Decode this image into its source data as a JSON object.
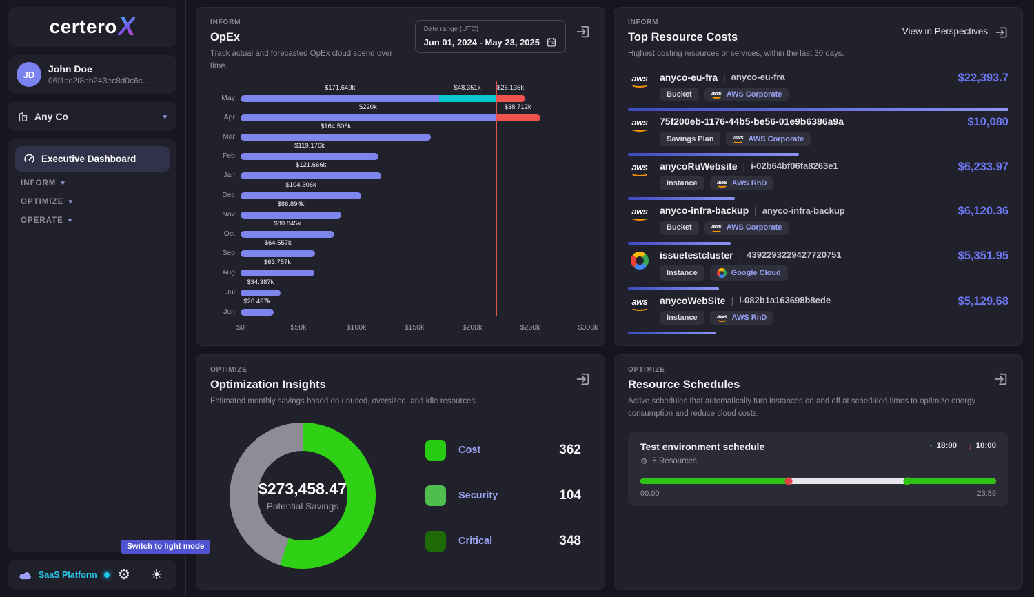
{
  "colors": {
    "accent_purple": "#7e86ee",
    "accent_cyan": "#00c9cf",
    "accent_red": "#ef5350",
    "price_purple": "#6d77f2",
    "donut_green": "#2fd115",
    "donut_gray": "#8d8d98",
    "timeline_green": "#2ec214",
    "timeline_off_dot": "#e04545",
    "timeline_on_dot": "#2ec214"
  },
  "icons": {
    "caret_down": "▾",
    "gear": "⚙",
    "sun": "☀",
    "up_arrow": "↑",
    "down_arrow": "↓",
    "pipe": "|"
  },
  "sidebar": {
    "logo": {
      "text": "certero",
      "x": "X"
    },
    "user": {
      "initials": "JD",
      "name": "John Doe",
      "id": "06f1cc2f8eb243ec8d0c6c..."
    },
    "company": {
      "name": "Any Co"
    },
    "nav": {
      "active": "Executive Dashboard",
      "sections": [
        {
          "label": "INFORM"
        },
        {
          "label": "OPTIMIZE"
        },
        {
          "label": "OPERATE"
        }
      ]
    },
    "tooltip": "Switch to light mode",
    "platform": {
      "label": "SaaS Platform"
    }
  },
  "opex": {
    "section": "INFORM",
    "title": "OpEx",
    "subtitle": "Track actual and forecasted OpEx cloud spend over time.",
    "date_range_label": "Date range (UTC)",
    "date_range_value": "Jun 01, 2024 - May 23, 2025"
  },
  "top_resources": {
    "section": "INFORM",
    "title": "Top Resource Costs",
    "subtitle": "Highest costing resources or services, within the last 30 days.",
    "link": "View in Perspectives",
    "items": [
      {
        "provider": "aws",
        "name": "anyco-eu-fra",
        "secondary": "anyco-eu-fra",
        "type": "Bucket",
        "account": "AWS Corporate",
        "account_provider": "aws",
        "cost": "$22,393.7",
        "bar_pct": 100
      },
      {
        "provider": "aws",
        "name": "75f200eb-1176-44b5-be56-01e9b6386a9a",
        "secondary": "",
        "type": "Savings Plan",
        "account": "AWS Corporate",
        "account_provider": "aws",
        "cost": "$10,080",
        "bar_pct": 45
      },
      {
        "provider": "aws",
        "name": "anycoRuWebsite",
        "secondary": "i-02b64bf06fa8263e1",
        "type": "Instance",
        "account": "AWS RnD",
        "account_provider": "aws",
        "cost": "$6,233.97",
        "bar_pct": 28
      },
      {
        "provider": "aws",
        "name": "anyco-infra-backup",
        "secondary": "anyco-infra-backup",
        "type": "Bucket",
        "account": "AWS Corporate",
        "account_provider": "aws",
        "cost": "$6,120.36",
        "bar_pct": 27
      },
      {
        "provider": "gcp",
        "name": "issuetestcluster",
        "secondary": "4392293229427720751",
        "type": "Instance",
        "account": "Google Cloud",
        "account_provider": "gcp",
        "cost": "$5,351.95",
        "bar_pct": 24
      },
      {
        "provider": "aws",
        "name": "anycoWebSite",
        "secondary": "i-082b1a163698b8ede",
        "type": "Instance",
        "account": "AWS RnD",
        "account_provider": "aws",
        "cost": "$5,129.68",
        "bar_pct": 23
      }
    ]
  },
  "optimization": {
    "section": "OPTIMIZE",
    "title": "Optimization Insights",
    "subtitle": "Estimated monthly savings based on unused, oversized, and idle resources.",
    "donut": {
      "center_value": "$273,458.47",
      "center_label": "Potential Savings",
      "green_pct": 55,
      "color": "#2fd115",
      "rest_color": "#8d8d98"
    },
    "legend": [
      {
        "label": "Cost",
        "count": "362",
        "color": "#27cc10"
      },
      {
        "label": "Security",
        "count": "104",
        "color": "#4fbe4f"
      },
      {
        "label": "Critical",
        "count": "348",
        "color": "#1d6a06"
      }
    ]
  },
  "schedules": {
    "section": "OPTIMIZE",
    "title": "Resource Schedules",
    "subtitle": "Active schedules that automatically turn instances on and off at scheduled times to optimize energy consumption and reduce cloud costs.",
    "schedule": {
      "name": "Test environment schedule",
      "resources": "8 Resources",
      "on_time": "18:00",
      "off_time": "10:00",
      "start_label": "00:00",
      "end_label": "23:59",
      "off_pct": 41.7,
      "on_pct": 75
    }
  },
  "chart_data": [
    {
      "type": "bar",
      "title": "OpEx monthly cloud spend",
      "orientation": "horizontal",
      "categories": [
        "May",
        "Apr",
        "Mar",
        "Feb",
        "Jan",
        "Dec",
        "Nov",
        "Oct",
        "Sep",
        "Aug",
        "Jul",
        "Jun"
      ],
      "xlim": [
        0,
        300
      ],
      "x_ticks": [
        "$0",
        "$50k",
        "$100k",
        "$150k",
        "$200k",
        "$250k",
        "$300k"
      ],
      "budget_line": 220,
      "series": [
        {
          "name": "actual",
          "color": "#7e86ee",
          "values": [
            171.649,
            220,
            164.506,
            119.176,
            121.666,
            104.306,
            86.894,
            80.845,
            64.557,
            63.757,
            34.387,
            28.497
          ],
          "value_labels": [
            "$171.649k",
            "$220k",
            "$164.506k",
            "$119.176k",
            "$121.666k",
            "$104.306k",
            "$86.894k",
            "$80.845k",
            "$64.557k",
            "$63.757k",
            "$34.387k",
            "$28.497k"
          ]
        },
        {
          "name": "forecast",
          "color": "#00c9cf",
          "values": [
            48.351,
            0,
            0,
            0,
            0,
            0,
            0,
            0,
            0,
            0,
            0,
            0
          ],
          "value_labels": [
            "$48.351k",
            "",
            "",
            "",
            "",
            "",
            "",
            "",
            "",
            "",
            "",
            ""
          ]
        },
        {
          "name": "overage",
          "color": "#ef5350",
          "values": [
            26.135,
            38.712,
            0,
            0,
            0,
            0,
            0,
            0,
            0,
            0,
            0,
            0
          ],
          "value_labels": [
            "$26.135k",
            "$38.712k",
            "",
            "",
            "",
            "",
            "",
            "",
            "",
            "",
            "",
            ""
          ]
        }
      ]
    },
    {
      "type": "pie",
      "title": "Optimization Insights donut",
      "center_value": "$273,458.47",
      "center_label": "Potential Savings",
      "slices": [
        {
          "label": "potential savings",
          "value": 55,
          "color": "#2fd115"
        },
        {
          "label": "remainder",
          "value": 45,
          "color": "#8d8d98"
        }
      ],
      "legend_counts": [
        {
          "label": "Cost",
          "value": 362
        },
        {
          "label": "Security",
          "value": 104
        },
        {
          "label": "Critical",
          "value": 348
        }
      ]
    },
    {
      "type": "area",
      "title": "Schedule timeline (24h)",
      "x_range": [
        "00:00",
        "23:59"
      ],
      "on_segments": [
        [
          0,
          41.7
        ],
        [
          75,
          100
        ]
      ],
      "off_segment": [
        41.7,
        75
      ],
      "power_on_at": "18:00",
      "power_off_at": "10:00"
    }
  ]
}
